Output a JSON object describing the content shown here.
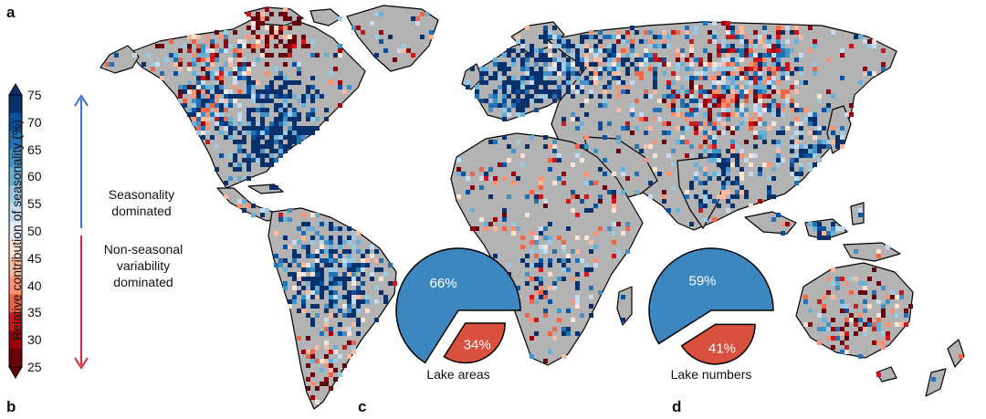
{
  "panels": {
    "a": "a",
    "b": "b",
    "c": "c",
    "d": "d"
  },
  "colorbar": {
    "title": "Relative contribution of seasonality (%)",
    "ticks": [
      "75",
      "70",
      "65",
      "60",
      "55",
      "50",
      "45",
      "40",
      "35",
      "30",
      "25"
    ],
    "colors": [
      "#08306b",
      "#08519c",
      "#2171b5",
      "#4292c6",
      "#6baed6",
      "#9ecae1",
      "#c6dbef",
      "#e8eff6",
      "#fbe3d6",
      "#fcbba1",
      "#fc9272",
      "#ef6548",
      "#cb181d",
      "#99000d",
      "#67000d"
    ],
    "extend": "both",
    "annotations": {
      "seasonal": {
        "lines": [
          "Seasonality",
          "dominated"
        ],
        "color": "#3a6fd8"
      },
      "nonseasonal": {
        "lines": [
          "Non-seasonal",
          "variability",
          "dominated"
        ],
        "color": "#d7263d"
      }
    }
  },
  "map": {
    "land_color": "#b3b3b3",
    "ocean_color": "#ffffff",
    "coast_color": "#000000"
  },
  "chart_data": [
    {
      "type": "pie",
      "panel": "c",
      "title": "Lake areas",
      "slices": [
        {
          "label": "66%",
          "value": 66,
          "color": "#3d87c0"
        },
        {
          "label": "34%",
          "value": 34,
          "color": "#d9503f"
        }
      ]
    },
    {
      "type": "pie",
      "panel": "d",
      "title": "Lake numbers",
      "slices": [
        {
          "label": "59%",
          "value": 59,
          "color": "#3d87c0"
        },
        {
          "label": "41%",
          "value": 41,
          "color": "#d9503f"
        }
      ]
    }
  ]
}
